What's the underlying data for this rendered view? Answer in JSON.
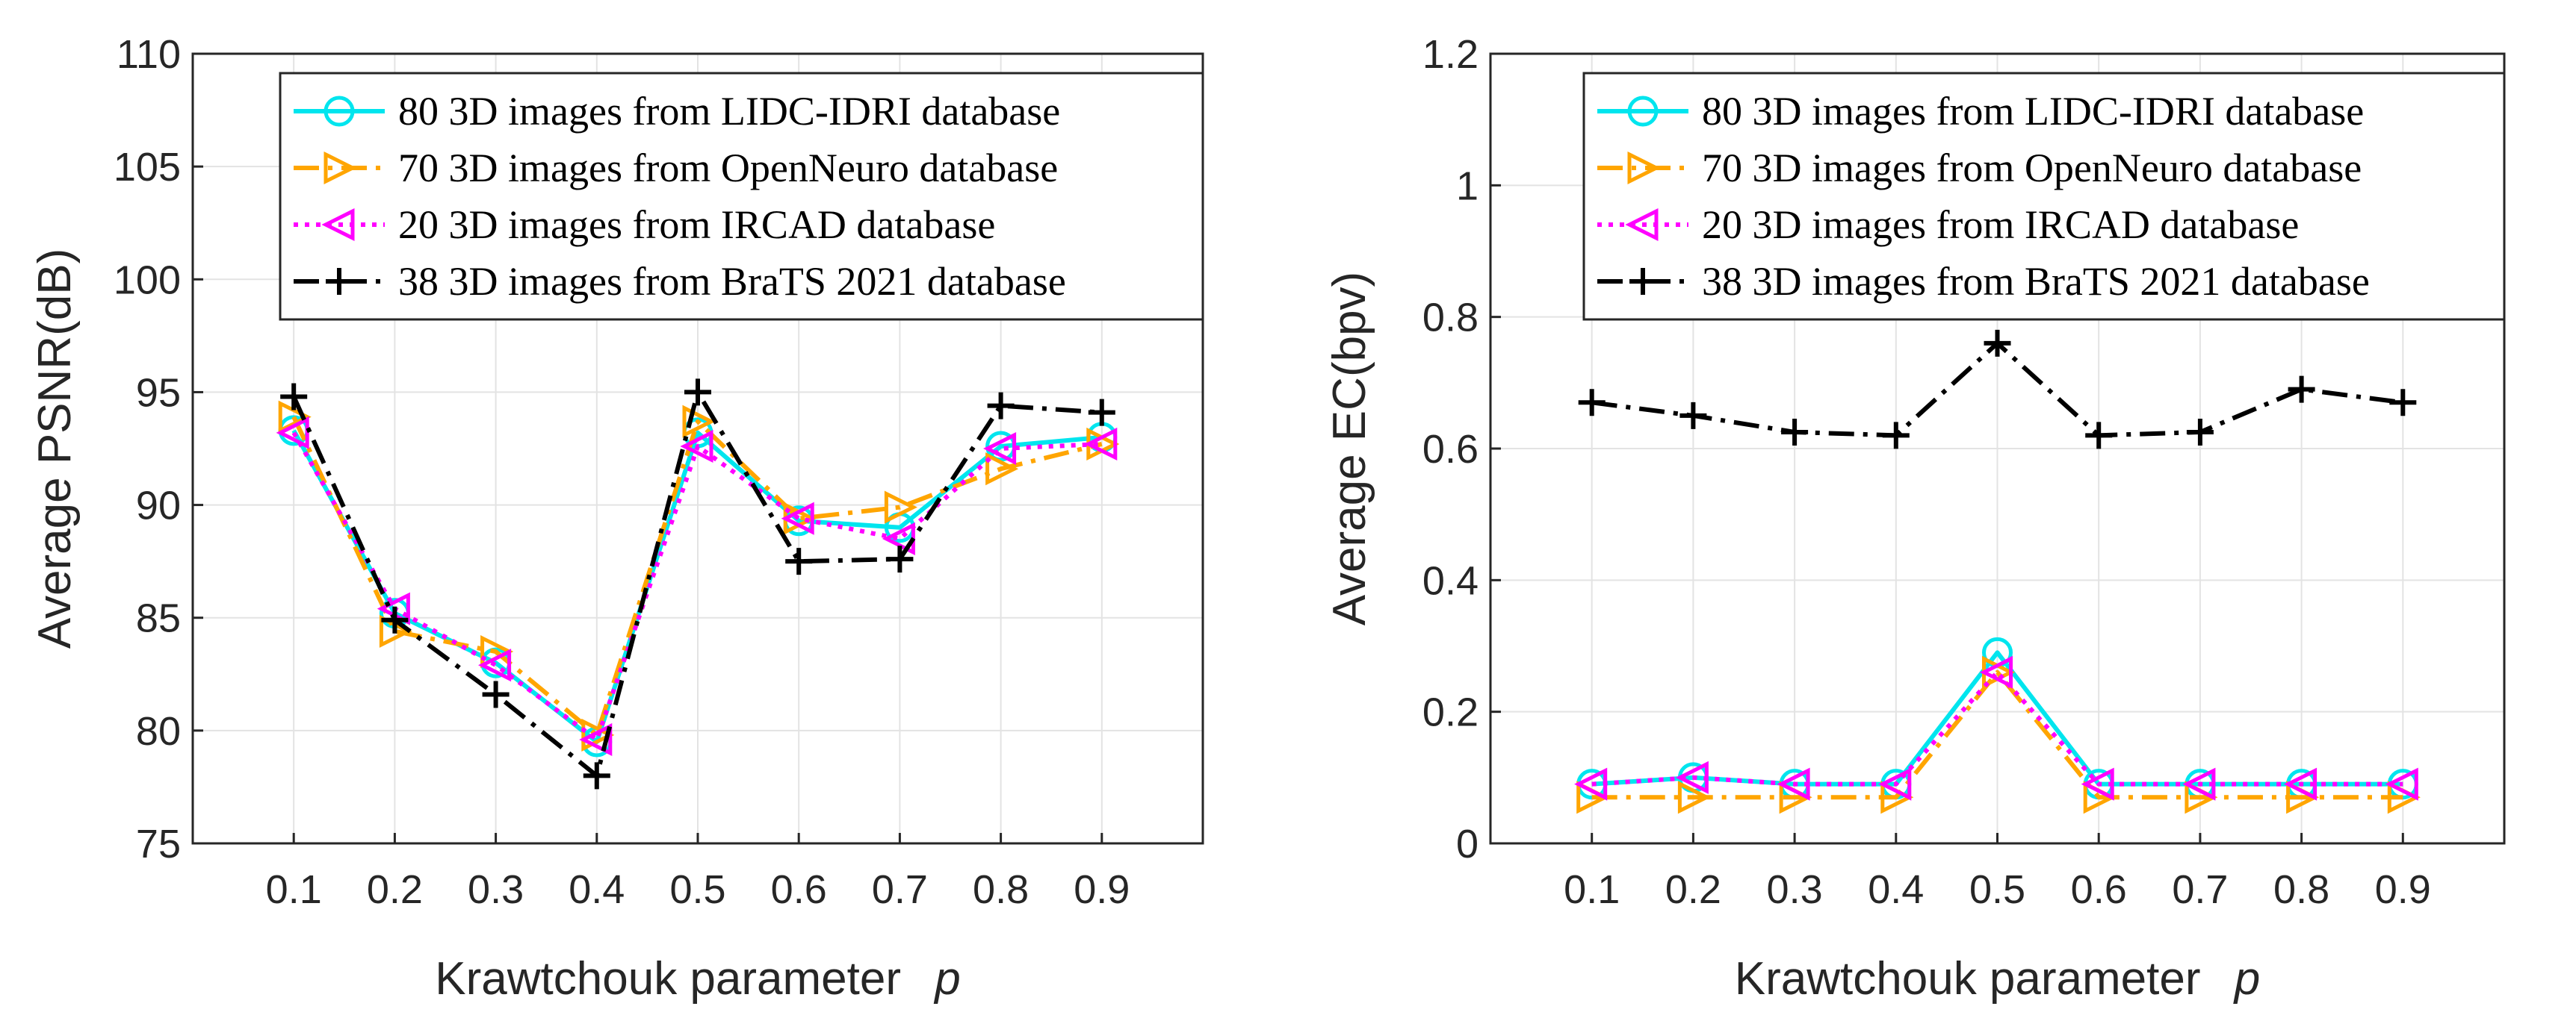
{
  "chart_data": [
    {
      "type": "line",
      "ylabel": "Average PSNR(dB)",
      "xlabel": "Krawtchouk parameter",
      "xlabel_symbol": "p",
      "x": [
        0.1,
        0.2,
        0.3,
        0.4,
        0.5,
        0.6,
        0.7,
        0.8,
        0.9
      ],
      "x_tick_labels": [
        "0.1",
        "0.2",
        "0.3",
        "0.4",
        "0.5",
        "0.6",
        "0.7",
        "0.8",
        "0.9"
      ],
      "xlim": [
        0,
        1
      ],
      "ylim": [
        75,
        110
      ],
      "y_ticks": [
        75,
        80,
        85,
        90,
        95,
        100,
        105,
        110
      ],
      "y_tick_labels": [
        "75",
        "80",
        "85",
        "90",
        "95",
        "100",
        "105",
        "110"
      ],
      "grid": true,
      "legend_position": "top-right",
      "series": [
        {
          "name": "80 3D images from LIDC-IDRI database",
          "color": "#00e5ee",
          "marker": "circle",
          "dash": "solid",
          "values": [
            93.3,
            85.2,
            83.0,
            79.5,
            93.2,
            89.3,
            89.0,
            92.6,
            93.0
          ]
        },
        {
          "name": "70 3D images from OpenNeuro database",
          "color": "#ffa500",
          "marker": "triangle-right",
          "dash": "dashdot",
          "values": [
            93.9,
            84.4,
            83.5,
            79.8,
            93.7,
            89.4,
            89.9,
            91.6,
            92.7
          ]
        },
        {
          "name": "20 3D images from IRCAD database",
          "color": "#ff00ff",
          "marker": "triangle-left",
          "dash": "dotted",
          "values": [
            93.2,
            85.4,
            82.9,
            79.6,
            92.6,
            89.4,
            88.5,
            92.5,
            92.7
          ]
        },
        {
          "name": "38 3D images from BraTS 2021 database",
          "color": "#000000",
          "marker": "plus",
          "dash": "dashdot",
          "values": [
            94.8,
            84.9,
            81.6,
            78.0,
            95.0,
            87.5,
            87.6,
            94.4,
            94.1
          ]
        }
      ]
    },
    {
      "type": "line",
      "ylabel": "Average EC(bpv)",
      "xlabel": "Krawtchouk parameter",
      "xlabel_symbol": "p",
      "x": [
        0.1,
        0.2,
        0.3,
        0.4,
        0.5,
        0.6,
        0.7,
        0.8,
        0.9
      ],
      "x_tick_labels": [
        "0.1",
        "0.2",
        "0.3",
        "0.4",
        "0.5",
        "0.6",
        "0.7",
        "0.8",
        "0.9"
      ],
      "xlim": [
        0,
        1
      ],
      "ylim": [
        0,
        1.2
      ],
      "y_ticks": [
        0,
        0.2,
        0.4,
        0.6,
        0.8,
        1,
        1.2
      ],
      "y_tick_labels": [
        "0",
        "0.2",
        "0.4",
        "0.6",
        "0.8",
        "1",
        "1.2"
      ],
      "grid": true,
      "legend_position": "top-right",
      "series": [
        {
          "name": "80 3D images from LIDC-IDRI database",
          "color": "#00e5ee",
          "marker": "circle",
          "dash": "solid",
          "values": [
            0.09,
            0.1,
            0.09,
            0.09,
            0.29,
            0.09,
            0.09,
            0.09,
            0.09
          ]
        },
        {
          "name": "70 3D images from OpenNeuro database",
          "color": "#ffa500",
          "marker": "triangle-right",
          "dash": "dashdot",
          "values": [
            0.07,
            0.07,
            0.07,
            0.07,
            0.26,
            0.07,
            0.07,
            0.07,
            0.07
          ]
        },
        {
          "name": "20 3D images from IRCAD database",
          "color": "#ff00ff",
          "marker": "triangle-left",
          "dash": "dotted",
          "values": [
            0.09,
            0.1,
            0.09,
            0.09,
            0.26,
            0.09,
            0.09,
            0.09,
            0.09
          ]
        },
        {
          "name": "38 3D images from BraTS 2021 database",
          "color": "#000000",
          "marker": "plus",
          "dash": "dashdot",
          "values": [
            0.67,
            0.65,
            0.625,
            0.62,
            0.76,
            0.62,
            0.625,
            0.69,
            0.67
          ]
        }
      ]
    }
  ]
}
